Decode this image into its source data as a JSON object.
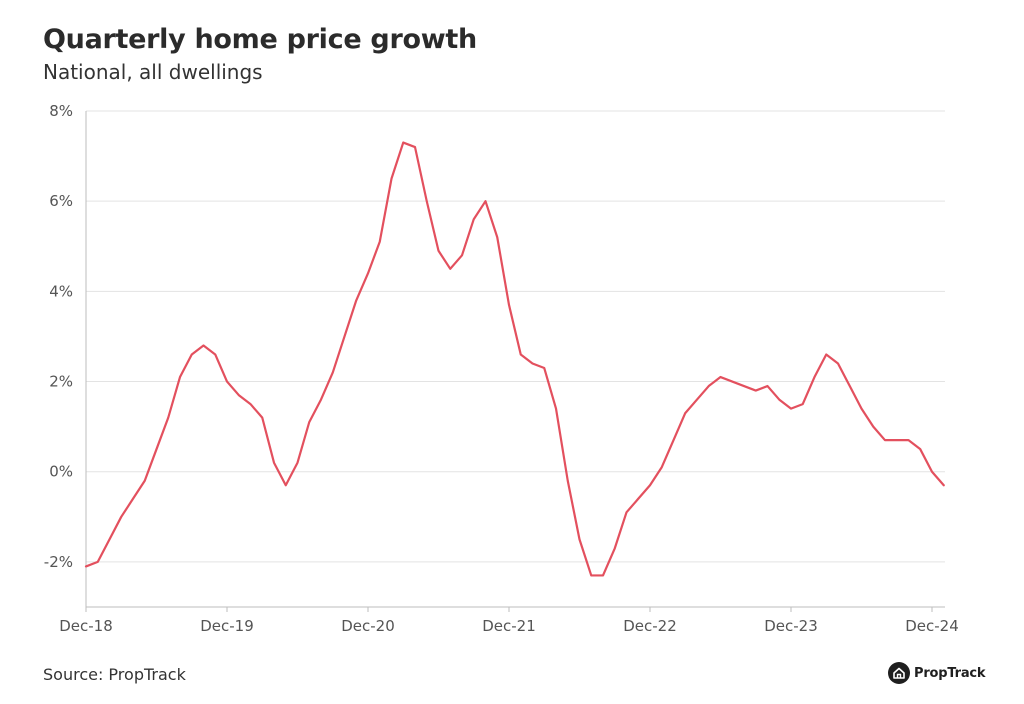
{
  "header": {
    "title": "Quarterly home price growth",
    "subtitle": "National, all dwellings"
  },
  "footer": {
    "source": "Source: PropTrack",
    "logo_text": "PropTrack"
  },
  "colors": {
    "line": "#e3505e",
    "grid": "#e3e3e3",
    "axis": "#bdbdbd"
  },
  "chart_data": {
    "type": "line",
    "title": "Quarterly home price growth",
    "subtitle": "National, all dwellings",
    "xlabel": "",
    "ylabel": "",
    "ylim": [
      -3,
      8
    ],
    "y_ticks": [
      -2,
      0,
      2,
      4,
      6,
      8
    ],
    "y_tick_labels": [
      "-2%",
      "0%",
      "2%",
      "4%",
      "6%",
      "8%"
    ],
    "x_tick_labels": [
      "Dec-18",
      "Dec-19",
      "Dec-20",
      "Dec-21",
      "Dec-22",
      "Dec-23",
      "Dec-24"
    ],
    "grid": true,
    "legend": "none",
    "series": [
      {
        "x": [
          "Dec-18",
          "Jan-19",
          "Feb-19",
          "Mar-19",
          "Apr-19",
          "May-19",
          "Jun-19",
          "Jul-19",
          "Aug-19",
          "Sep-19",
          "Oct-19",
          "Nov-19",
          "Dec-19",
          "Jan-20",
          "Feb-20",
          "Mar-20",
          "Apr-20",
          "May-20",
          "Jun-20",
          "Jul-20",
          "Aug-20",
          "Sep-20",
          "Oct-20",
          "Nov-20",
          "Dec-20",
          "Jan-21",
          "Feb-21",
          "Mar-21",
          "Apr-21",
          "May-21",
          "Jun-21",
          "Jul-21",
          "Aug-21",
          "Sep-21",
          "Oct-21",
          "Nov-21",
          "Dec-21",
          "Jan-22",
          "Feb-22",
          "Mar-22",
          "Apr-22",
          "May-22",
          "Jun-22",
          "Jul-22",
          "Aug-22",
          "Sep-22",
          "Oct-22",
          "Nov-22",
          "Dec-22",
          "Jan-23",
          "Feb-23",
          "Mar-23",
          "Apr-23",
          "May-23",
          "Jun-23",
          "Jul-23",
          "Aug-23",
          "Sep-23",
          "Oct-23",
          "Nov-23",
          "Dec-23",
          "Jan-24",
          "Feb-24",
          "Mar-24",
          "Apr-24",
          "May-24",
          "Jun-24",
          "Jul-24",
          "Aug-24",
          "Sep-24",
          "Oct-24",
          "Nov-24",
          "Dec-24",
          "Jan-25"
        ],
        "values": [
          -2.1,
          -2.0,
          -1.5,
          -1.0,
          -0.6,
          -0.2,
          0.5,
          1.2,
          2.1,
          2.6,
          2.8,
          2.6,
          2.0,
          1.7,
          1.5,
          1.2,
          0.2,
          -0.3,
          0.2,
          1.1,
          1.6,
          2.2,
          3.0,
          3.8,
          4.4,
          5.1,
          6.5,
          7.3,
          7.2,
          6.0,
          4.9,
          4.5,
          4.8,
          5.6,
          6.0,
          5.2,
          3.7,
          2.6,
          2.4,
          2.3,
          1.4,
          -0.2,
          -1.5,
          -2.3,
          -2.3,
          -1.7,
          -0.9,
          -0.6,
          -0.3,
          0.1,
          0.7,
          1.3,
          1.6,
          1.9,
          2.1,
          2.0,
          1.9,
          1.8,
          1.9,
          1.6,
          1.4,
          1.5,
          2.1,
          2.6,
          2.4,
          1.9,
          1.4,
          1.0,
          0.7,
          0.7,
          0.7,
          0.5,
          0.0,
          -0.3
        ]
      }
    ]
  }
}
